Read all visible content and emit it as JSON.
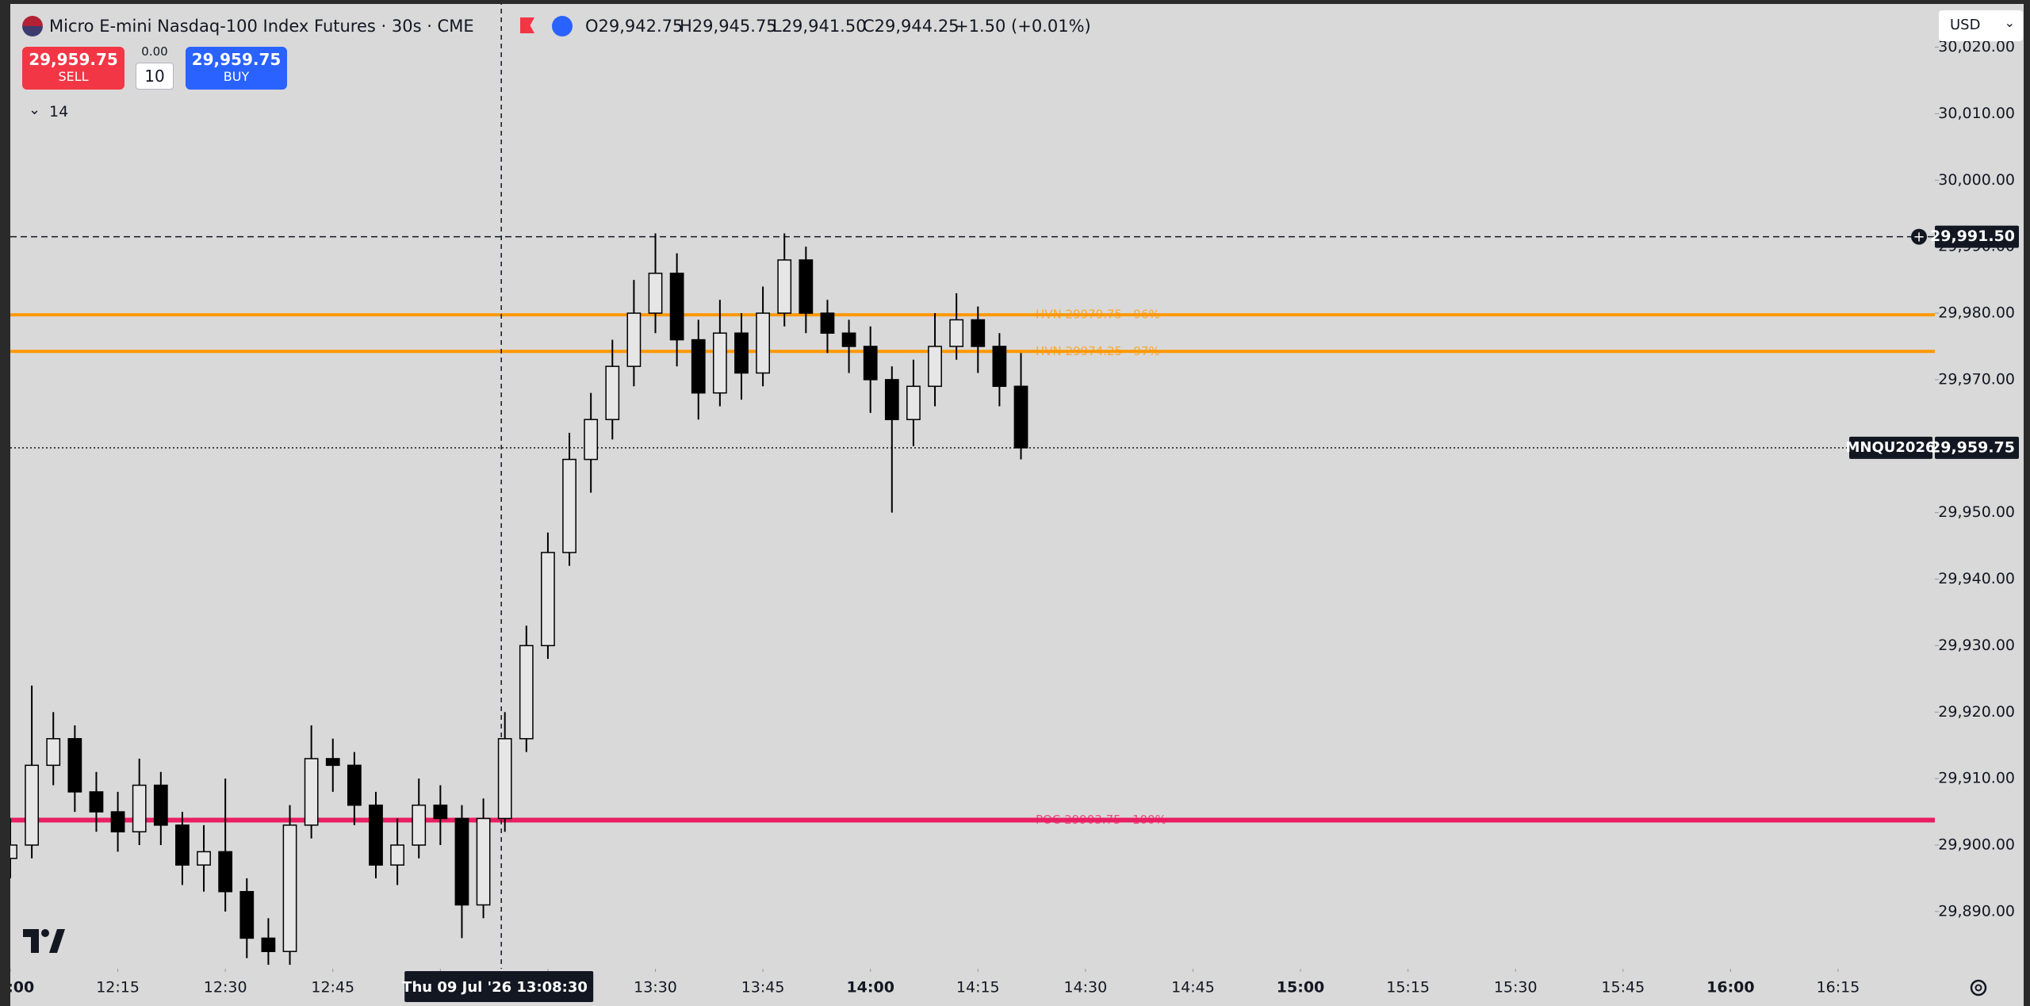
{
  "header": {
    "symbol_title": "Micro E-mini Nasdaq-100 Index Futures · 30s · CME",
    "open": "O29,942.75",
    "high": "H29,945.75",
    "low": "L29,941.50",
    "close": "C29,944.25",
    "change": "+1.50 (+0.01%)"
  },
  "trade": {
    "sell_price": "29,959.75",
    "sell_label": "SELL",
    "spread": "0.00",
    "quantity": "10",
    "buy_price": "29,959.75",
    "buy_label": "BUY"
  },
  "indicators_count": "14",
  "currency": "USD",
  "chart_data": {
    "type": "candlestick",
    "x": [
      "12:00",
      "12:03",
      "12:06",
      "12:09",
      "12:12",
      "12:15",
      "12:18",
      "12:21",
      "12:24",
      "12:27",
      "12:30",
      "12:33",
      "12:36",
      "12:39",
      "12:42",
      "12:45",
      "12:48",
      "12:51",
      "12:54",
      "12:57",
      "13:00",
      "13:03",
      "13:06",
      "13:09",
      "13:12",
      "13:15",
      "13:18",
      "13:21",
      "13:24",
      "13:27",
      "13:30",
      "13:33",
      "13:36",
      "13:39",
      "13:42",
      "13:45",
      "13:48",
      "13:51",
      "13:54",
      "13:57",
      "14:00",
      "14:03",
      "14:06",
      "14:09",
      "14:12",
      "14:15",
      "14:18",
      "14:21"
    ],
    "open": [
      29898,
      29900,
      29912,
      29916,
      29908,
      29905,
      29902,
      29909,
      29903,
      29897,
      29899,
      29893,
      29886,
      29884,
      29903,
      29913,
      29912,
      29906,
      29897,
      29900,
      29906,
      29904,
      29891,
      29904,
      29916,
      29930,
      29944,
      29958,
      29964,
      29972,
      29980,
      29986,
      29976,
      29968,
      29977,
      29971,
      29980,
      29988,
      29980,
      29977,
      29975,
      29970,
      29964,
      29969,
      29975,
      29979,
      29975,
      29969
    ],
    "high": [
      29904,
      29924,
      29920,
      29918,
      29911,
      29908,
      29913,
      29911,
      29905,
      29903,
      29910,
      29895,
      29889,
      29906,
      29918,
      29916,
      29914,
      29908,
      29904,
      29910,
      29909,
      29906,
      29907,
      29920,
      29933,
      29947,
      29962,
      29968,
      29976,
      29985,
      29992,
      29989,
      29979,
      29982,
      29980,
      29984,
      29992,
      29990,
      29982,
      29979,
      29978,
      29972,
      29973,
      29980,
      29983,
      29981,
      29977,
      29974
    ],
    "low": [
      29895,
      29898,
      29909,
      29905,
      29902,
      29899,
      29900,
      29900,
      29894,
      29893,
      29890,
      29883,
      29882,
      29882,
      29901,
      29908,
      29903,
      29895,
      29894,
      29898,
      29900,
      29886,
      29889,
      29902,
      29914,
      29928,
      29942,
      29953,
      29961,
      29969,
      29977,
      29972,
      29964,
      29966,
      29967,
      29969,
      29978,
      29977,
      29974,
      29971,
      29965,
      29950,
      29960,
      29966,
      29973,
      29971,
      29966,
      29958
    ],
    "close": [
      29900,
      29912,
      29916,
      29908,
      29905,
      29902,
      29909,
      29903,
      29897,
      29899,
      29893,
      29886,
      29884,
      29903,
      29913,
      29912,
      29906,
      29897,
      29900,
      29906,
      29904,
      29891,
      29904,
      29916,
      29930,
      29944,
      29958,
      29964,
      29972,
      29980,
      29986,
      29976,
      29968,
      29977,
      29971,
      29980,
      29988,
      29980,
      29977,
      29975,
      29970,
      29964,
      29969,
      29975,
      29979,
      29975,
      29969,
      29959.75
    ],
    "candle_colors": {
      "up": "#e6e6e6",
      "down": "#000000",
      "border": "#000000"
    },
    "xlim": [
      "12:00",
      "16:28:30"
    ],
    "xticks": [
      "12:00",
      "12:15",
      "12:30",
      "12:45",
      "13:00",
      "13:15",
      "13:30",
      "13:45",
      "14:00",
      "14:15",
      "14:30",
      "14:45",
      "15:00",
      "15:15",
      "15:30",
      "15:45",
      "16:00",
      "16:15"
    ],
    "ylim": [
      29881.4,
      30027.1
    ],
    "yticks": [
      {
        "value": 29890,
        "label": "29,890.00"
      },
      {
        "value": 29900,
        "label": "29,900.00"
      },
      {
        "value": 29910,
        "label": "29,910.00"
      },
      {
        "value": 29920,
        "label": "29,920.00"
      },
      {
        "value": 29930,
        "label": "29,930.00"
      },
      {
        "value": 29940,
        "label": "29,940.00"
      },
      {
        "value": 29950,
        "label": "29,950.00"
      },
      {
        "value": 29960,
        "label": "29,960.00"
      },
      {
        "value": 29970,
        "label": "29,970.00"
      },
      {
        "value": 29980,
        "label": "29,980.00"
      },
      {
        "value": 29990,
        "label": "29,990.00"
      },
      {
        "value": 30000,
        "label": "30,000.00"
      },
      {
        "value": 30010,
        "label": "30,010.00"
      },
      {
        "value": 30020,
        "label": "30,020.00"
      }
    ],
    "levels": [
      {
        "label": "HVN 29979.75 · 96%",
        "value": 29979.75,
        "color": "#ff9800"
      },
      {
        "label": "HVN 29974.25 · 97%",
        "value": 29974.25,
        "color": "#ff9800"
      },
      {
        "label": "POC 29903.75 · 100%",
        "value": 29903.75,
        "color": "#e91e63"
      }
    ],
    "alert_line": {
      "value": 29991.5,
      "label": "29,991.50"
    },
    "last_price": {
      "symbol": "MNQU2026",
      "value": 29959.75,
      "label": "29,959.75"
    },
    "crosshair": {
      "date": "Thu 09 Jul '26",
      "time": "13:08:30"
    }
  }
}
